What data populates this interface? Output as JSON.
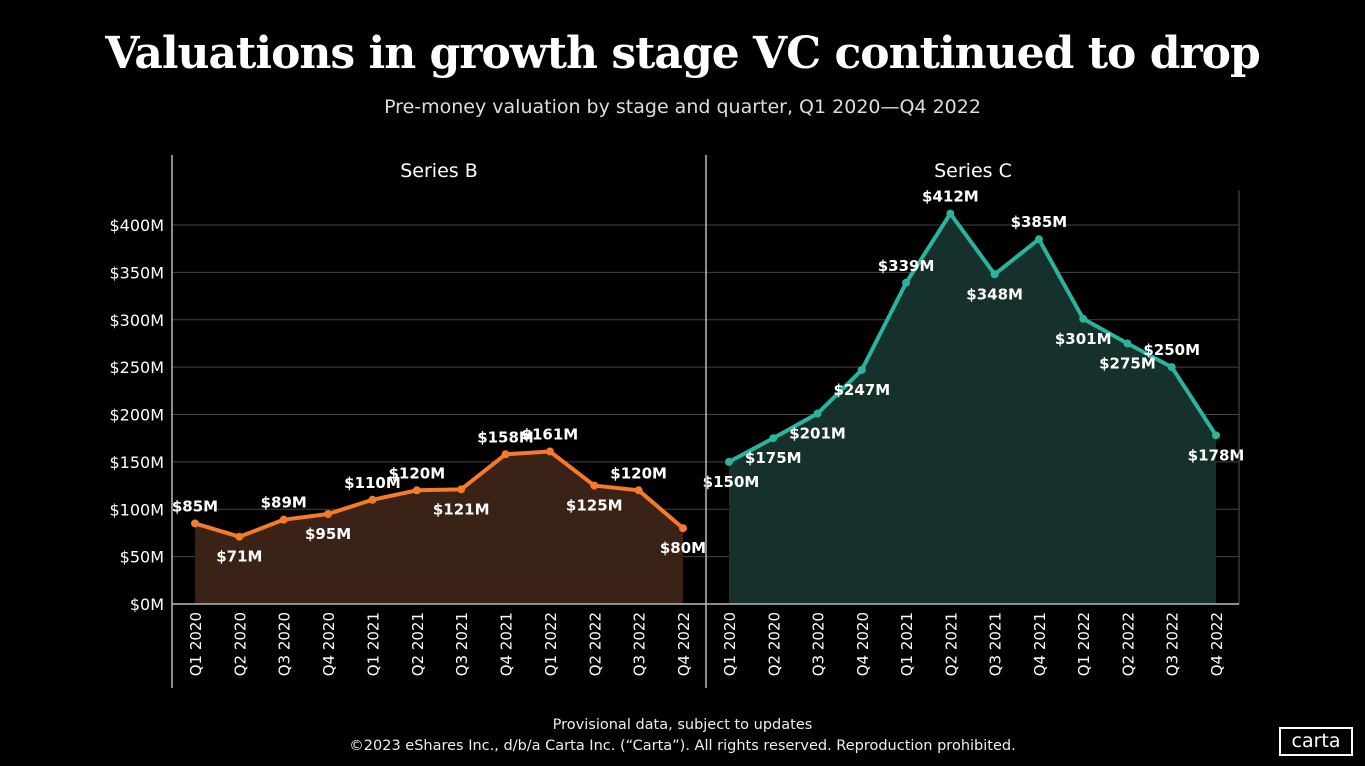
{
  "title": "Valuations in growth stage VC continued to drop",
  "subtitle": "Pre-money valuation by stage and quarter, Q1 2020—Q4 2022",
  "footer": {
    "line1": "Provisional data, subject to updates",
    "line2": "©2023 eShares Inc., d/b/a Carta Inc. (“Carta”). All rights reserved. Reproduction prohibited."
  },
  "logo": "carta",
  "chart_data": [
    {
      "type": "area",
      "title": "Series B",
      "color": "#f47b2a",
      "fill": "#3a2216",
      "categories": [
        "Q1 2020",
        "Q2 2020",
        "Q3 2020",
        "Q4 2020",
        "Q1 2021",
        "Q2 2021",
        "Q3 2021",
        "Q4 2021",
        "Q1 2022",
        "Q2 2022",
        "Q3 2022",
        "Q4 2022"
      ],
      "values": [
        85,
        71,
        89,
        95,
        110,
        120,
        121,
        158,
        161,
        125,
        120,
        80
      ],
      "labels": [
        "$85M",
        "$71M",
        "$89M",
        "$95M",
        "$110M",
        "$120M",
        "$121M",
        "$158M",
        "$161M",
        "$125M",
        "$120M",
        "$80M"
      ],
      "ylim": [
        0,
        400
      ],
      "yticks": [
        "$0M",
        "$50M",
        "$100M",
        "$150M",
        "$200M",
        "$250M",
        "$300M",
        "$350M",
        "$400M"
      ],
      "grid": true
    },
    {
      "type": "area",
      "title": "Series C",
      "color": "#2bb39d",
      "fill": "#16302c",
      "categories": [
        "Q1 2020",
        "Q2 2020",
        "Q3 2020",
        "Q4 2020",
        "Q1 2021",
        "Q2 2021",
        "Q3 2021",
        "Q4 2021",
        "Q1 2022",
        "Q2 2022",
        "Q3 2022",
        "Q4 2022"
      ],
      "values": [
        150,
        175,
        201,
        247,
        339,
        412,
        348,
        385,
        301,
        275,
        250,
        178
      ],
      "labels": [
        "$150M",
        "$175M",
        "$201M",
        "$247M",
        "$339M",
        "$412M",
        "$348M",
        "$385M",
        "$301M",
        "$275M",
        "$250M",
        "$178M"
      ],
      "ylim": [
        0,
        400
      ],
      "grid": true
    }
  ]
}
